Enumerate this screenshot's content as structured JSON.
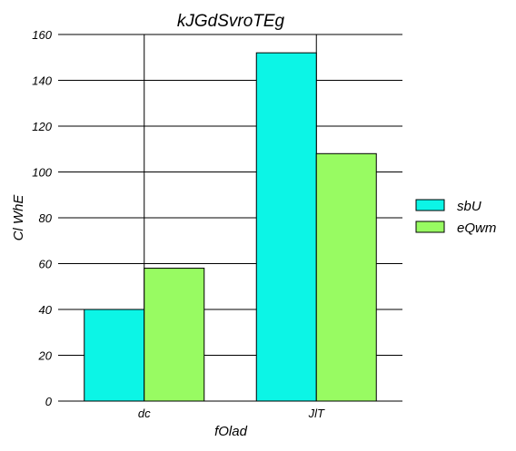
{
  "chart_data": {
    "type": "bar",
    "title": "kJGdSvroTEg",
    "xlabel": "fOlad",
    "ylabel": "Cl WhE",
    "categories": [
      "dc",
      "JlT"
    ],
    "series": [
      {
        "name": "sbU",
        "values": [
          40,
          152
        ],
        "color": "#0cf5e6"
      },
      {
        "name": "eQwm",
        "values": [
          58,
          108
        ],
        "color": "#98fb62"
      }
    ],
    "ylim": [
      0,
      160
    ],
    "yticks": [
      0,
      20,
      40,
      60,
      80,
      100,
      120,
      140,
      160
    ],
    "grid": true,
    "legend_position": "right"
  }
}
